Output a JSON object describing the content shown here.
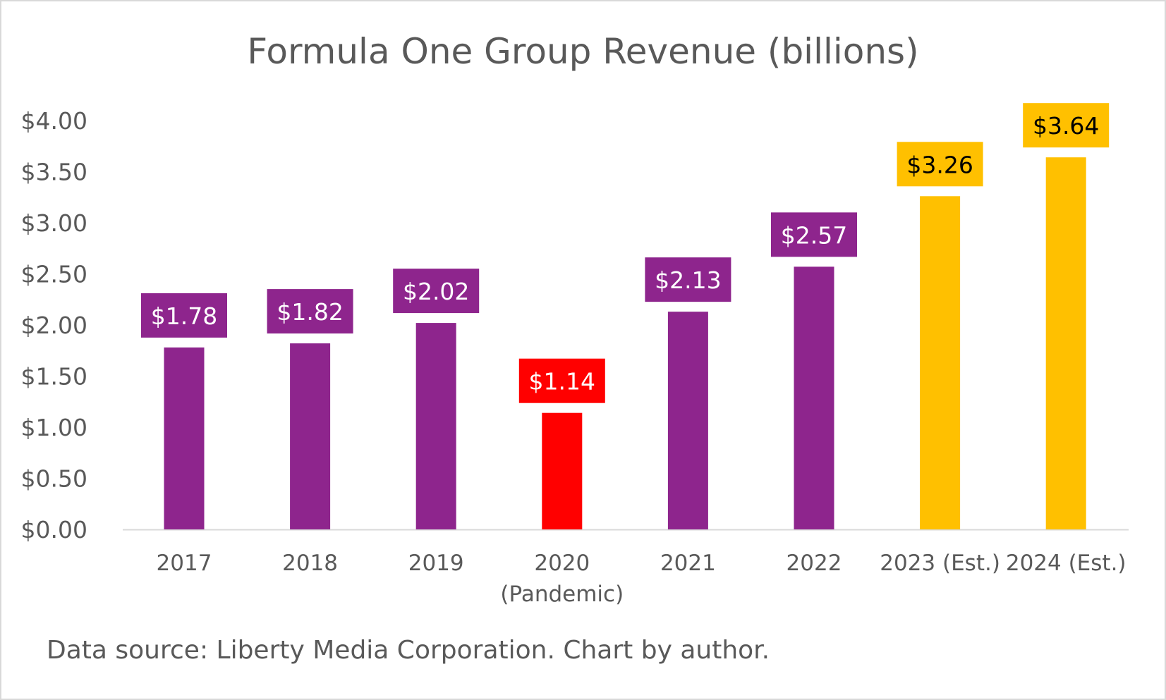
{
  "chart_data": {
    "type": "bar",
    "title": "Formula One Group Revenue (billions)",
    "categories": [
      "2017",
      "2018",
      "2019",
      "2020\n(Pandemic)",
      "2021",
      "2022",
      "2023 (Est.)",
      "2024 (Est.)"
    ],
    "values": [
      1.78,
      1.82,
      2.02,
      1.14,
      2.13,
      2.57,
      3.26,
      3.64
    ],
    "data_labels": [
      "$1.78",
      "$1.82",
      "$2.02",
      "$1.14",
      "$2.13",
      "$2.57",
      "$3.26",
      "$3.64"
    ],
    "colors": [
      "#8e258d",
      "#8e258d",
      "#8e258d",
      "#ff0000",
      "#8e258d",
      "#8e258d",
      "#ffc000",
      "#ffc000"
    ],
    "label_text_colors": [
      "#ffffff",
      "#ffffff",
      "#ffffff",
      "#ffffff",
      "#ffffff",
      "#ffffff",
      "#000000",
      "#000000"
    ],
    "ylim": [
      0,
      4
    ],
    "yticks": [
      0,
      0.5,
      1,
      1.5,
      2,
      2.5,
      3,
      3.5,
      4
    ],
    "ytick_labels": [
      "$0.00",
      "$0.50",
      "$1.00",
      "$1.50",
      "$2.00",
      "$2.50",
      "$3.00",
      "$3.50",
      "$4.00"
    ],
    "grid": false,
    "legend": "none",
    "xlabel": "",
    "ylabel": ""
  },
  "footer": {
    "source": "Data source: Liberty Media Corporation. Chart by author."
  }
}
